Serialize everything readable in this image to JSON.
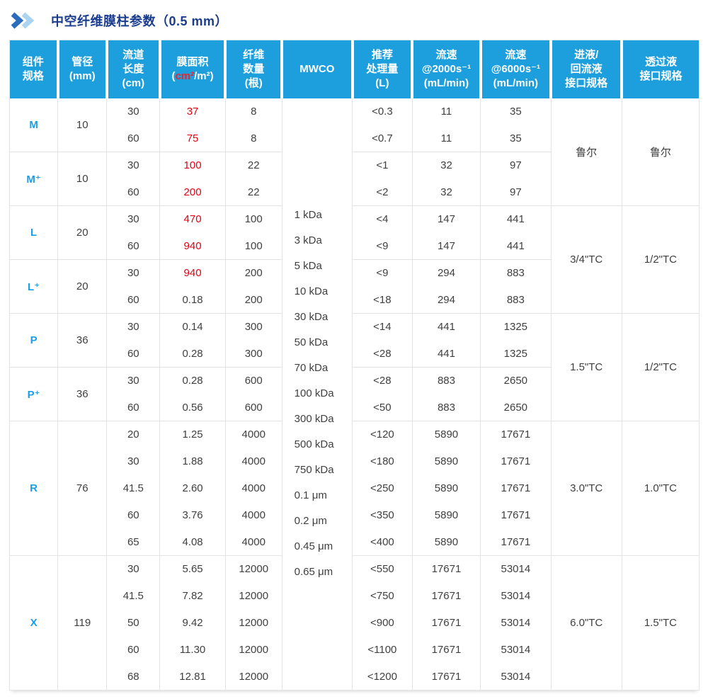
{
  "colors": {
    "header_bg": "#1d9fdd",
    "spec_label_blue": "#1c9de6",
    "area_red": "#e60012",
    "title_navy": "#1a3c8f",
    "chevron_dark": "#2b6cbd",
    "chevron_light": "#abd4f1",
    "grid_line": "#e4e4e4"
  },
  "title": {
    "text": "中空纤维膜柱参数（0.5 mm）"
  },
  "icons": {
    "title_marker": "double-chevron-right"
  },
  "table": {
    "headers": {
      "component": {
        "lines": [
          "组件",
          "规格"
        ]
      },
      "diameter": {
        "lines": [
          "管径",
          "(mm)"
        ]
      },
      "channel_length": {
        "lines": [
          "流道",
          "长度",
          "(cm)"
        ]
      },
      "membrane_area": {
        "title": "膜面积",
        "unit_open": "(",
        "unit_red": "cm²",
        "unit_rest": "/m²)"
      },
      "fiber_count": {
        "lines": [
          "纤维",
          "数量",
          "(根)"
        ]
      },
      "mwco": {
        "label": "MWCO"
      },
      "recommended_volume": {
        "lines": [
          "推荐",
          "处理量",
          "(L)"
        ]
      },
      "flow_2000": {
        "lines": [
          "流速",
          "@2000s⁻¹",
          "(mL/min)"
        ]
      },
      "flow_6000": {
        "lines": [
          "流速",
          "@6000s⁻¹",
          "(mL/min)"
        ]
      },
      "inlet_interface": {
        "lines": [
          "进液/",
          "回流液",
          "接口规格"
        ]
      },
      "permeate_interface": {
        "lines": [
          "透过液",
          "接口规格"
        ]
      }
    },
    "mwco_values": [
      "1 kDa",
      "3 kDa",
      "5 kDa",
      "10 kDa",
      "30 kDa",
      "50 kDa",
      "70 kDa",
      "100 kDa",
      "300 kDa",
      "500 kDa",
      "750 kDa",
      "0.1 μm",
      "0.2 μm",
      "0.45 μm",
      "0.65 μm"
    ],
    "groups": [
      {
        "label": "M",
        "diameter": "10",
        "iface": {
          "inlet": "鲁尔",
          "permeate": "鲁尔",
          "rows": 4
        },
        "rows": [
          {
            "length": "30",
            "area": "37",
            "area_red": true,
            "fibers": "8",
            "volume": "<0.3",
            "flow_2000": "11",
            "flow_6000": "35"
          },
          {
            "length": "60",
            "area": "75",
            "area_red": true,
            "fibers": "8",
            "volume": "<0.7",
            "flow_2000": "11",
            "flow_6000": "35"
          }
        ]
      },
      {
        "label": "M⁺",
        "diameter": "10",
        "rows": [
          {
            "length": "30",
            "area": "100",
            "area_red": true,
            "fibers": "22",
            "volume": "<1",
            "flow_2000": "32",
            "flow_6000": "97"
          },
          {
            "length": "60",
            "area": "200",
            "area_red": true,
            "fibers": "22",
            "volume": "<2",
            "flow_2000": "32",
            "flow_6000": "97"
          }
        ]
      },
      {
        "label": "L",
        "diameter": "20",
        "iface": {
          "inlet": "3/4\"TC",
          "permeate": "1/2\"TC",
          "rows": 4
        },
        "rows": [
          {
            "length": "30",
            "area": "470",
            "area_red": true,
            "fibers": "100",
            "volume": "<4",
            "flow_2000": "147",
            "flow_6000": "441"
          },
          {
            "length": "60",
            "area": "940",
            "area_red": true,
            "fibers": "100",
            "volume": "<9",
            "flow_2000": "147",
            "flow_6000": "441"
          }
        ]
      },
      {
        "label": "L⁺",
        "diameter": "20",
        "rows": [
          {
            "length": "30",
            "area": "940",
            "area_red": true,
            "fibers": "200",
            "volume": "<9",
            "flow_2000": "294",
            "flow_6000": "883"
          },
          {
            "length": "60",
            "area": "0.18",
            "area_red": false,
            "fibers": "200",
            "volume": "<18",
            "flow_2000": "294",
            "flow_6000": "883"
          }
        ]
      },
      {
        "label": "P",
        "diameter": "36",
        "iface": {
          "inlet": "1.5\"TC",
          "permeate": "1/2\"TC",
          "rows": 4
        },
        "rows": [
          {
            "length": "30",
            "area": "0.14",
            "area_red": false,
            "fibers": "300",
            "volume": "<14",
            "flow_2000": "441",
            "flow_6000": "1325"
          },
          {
            "length": "60",
            "area": "0.28",
            "area_red": false,
            "fibers": "300",
            "volume": "<28",
            "flow_2000": "441",
            "flow_6000": "1325"
          }
        ]
      },
      {
        "label": "P⁺",
        "diameter": "36",
        "rows": [
          {
            "length": "30",
            "area": "0.28",
            "area_red": false,
            "fibers": "600",
            "volume": "<28",
            "flow_2000": "883",
            "flow_6000": "2650"
          },
          {
            "length": "60",
            "area": "0.56",
            "area_red": false,
            "fibers": "600",
            "volume": "<50",
            "flow_2000": "883",
            "flow_6000": "2650"
          }
        ]
      },
      {
        "label": "R",
        "diameter": "76",
        "iface": {
          "inlet": "3.0\"TC",
          "permeate": "1.0\"TC",
          "rows": 5
        },
        "rows": [
          {
            "length": "20",
            "area": "1.25",
            "area_red": false,
            "fibers": "4000",
            "volume": "<120",
            "flow_2000": "5890",
            "flow_6000": "17671"
          },
          {
            "length": "30",
            "area": "1.88",
            "area_red": false,
            "fibers": "4000",
            "volume": "<180",
            "flow_2000": "5890",
            "flow_6000": "17671"
          },
          {
            "length": "41.5",
            "area": "2.60",
            "area_red": false,
            "fibers": "4000",
            "volume": "<250",
            "flow_2000": "5890",
            "flow_6000": "17671"
          },
          {
            "length": "60",
            "area": "3.76",
            "area_red": false,
            "fibers": "4000",
            "volume": "<350",
            "flow_2000": "5890",
            "flow_6000": "17671"
          },
          {
            "length": "65",
            "area": "4.08",
            "area_red": false,
            "fibers": "4000",
            "volume": "<400",
            "flow_2000": "5890",
            "flow_6000": "17671"
          }
        ]
      },
      {
        "label": "X",
        "diameter": "119",
        "iface": {
          "inlet": "6.0\"TC",
          "permeate": "1.5\"TC",
          "rows": 5
        },
        "rows": [
          {
            "length": "30",
            "area": "5.65",
            "area_red": false,
            "fibers": "12000",
            "volume": "<550",
            "flow_2000": "17671",
            "flow_6000": "53014"
          },
          {
            "length": "41.5",
            "area": "7.82",
            "area_red": false,
            "fibers": "12000",
            "volume": "<750",
            "flow_2000": "17671",
            "flow_6000": "53014"
          },
          {
            "length": "50",
            "area": "9.42",
            "area_red": false,
            "fibers": "12000",
            "volume": "<900",
            "flow_2000": "17671",
            "flow_6000": "53014"
          },
          {
            "length": "60",
            "area": "11.30",
            "area_red": false,
            "fibers": "12000",
            "volume": "<1100",
            "flow_2000": "17671",
            "flow_6000": "53014"
          },
          {
            "length": "68",
            "area": "12.81",
            "area_red": false,
            "fibers": "12000",
            "volume": "<1200",
            "flow_2000": "17671",
            "flow_6000": "53014"
          }
        ]
      }
    ]
  }
}
